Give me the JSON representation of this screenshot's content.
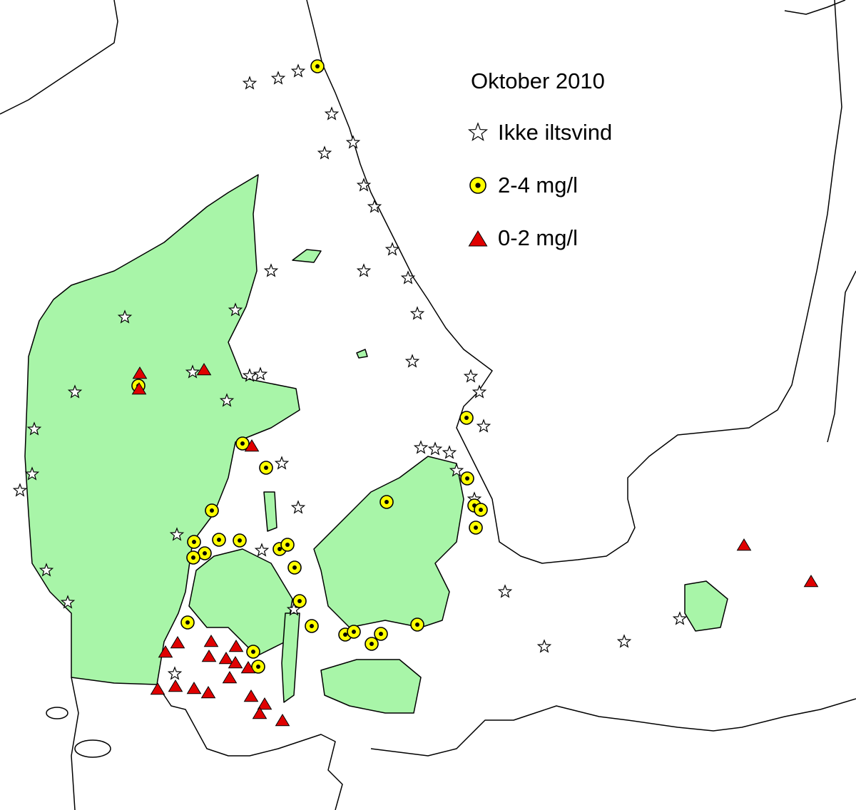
{
  "title": "Oktober 2010",
  "legend": [
    {
      "label": "Ikke iltsvind"
    },
    {
      "label": "2-4 mg/l"
    },
    {
      "label": "0-2 mg/l"
    }
  ]
}
